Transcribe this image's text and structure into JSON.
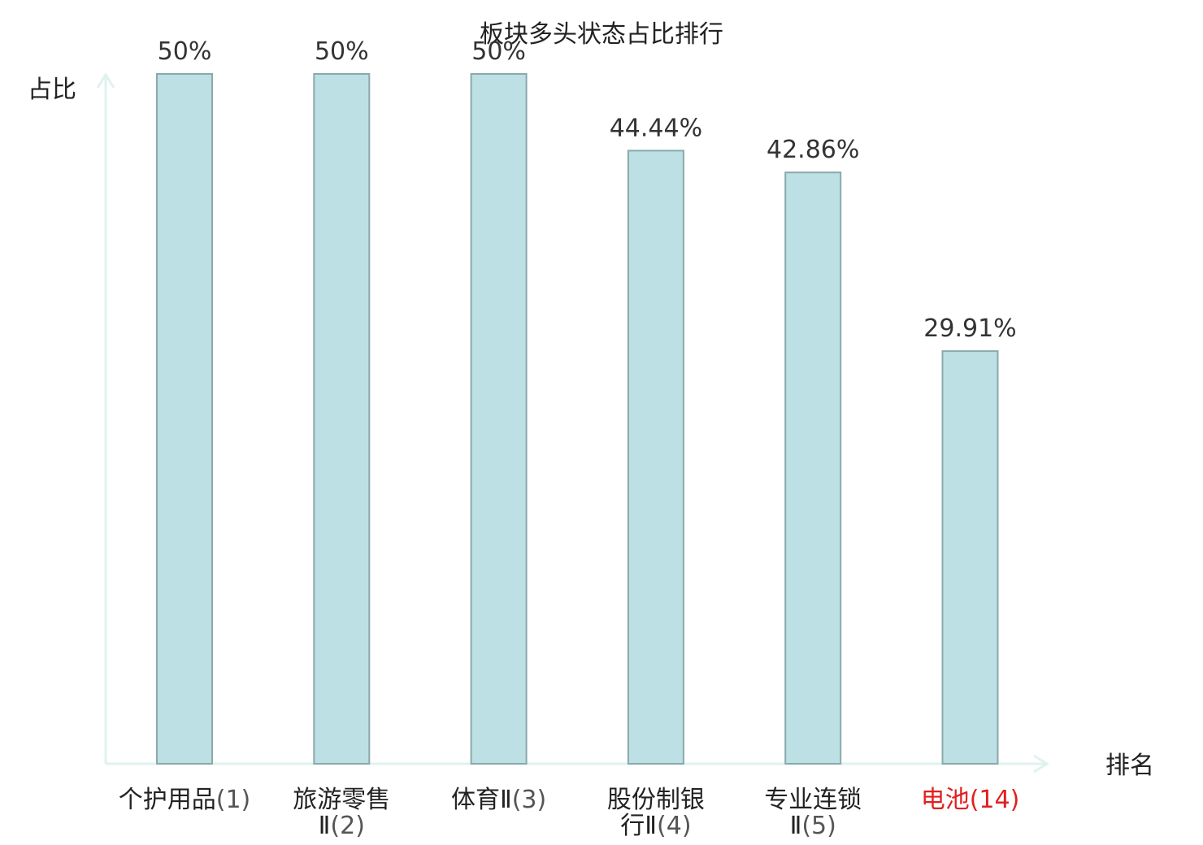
{
  "chart_data": {
    "type": "bar",
    "title": "板块多头状态占比排行",
    "ylabel": "占比",
    "xlabel": "排名",
    "ylim": [
      0,
      50
    ],
    "grid": false,
    "categories": [
      {
        "name": "个护用品",
        "rank": "(1)",
        "wrap": false,
        "highlight": false
      },
      {
        "name": "旅游零售Ⅱ",
        "rank": "(2)",
        "wrap": true,
        "highlight": false
      },
      {
        "name": "体育Ⅱ",
        "rank": "(3)",
        "wrap": false,
        "highlight": false
      },
      {
        "name": "股份制银行Ⅱ",
        "rank": "(4)",
        "wrap": true,
        "highlight": false
      },
      {
        "name": "专业连锁Ⅱ",
        "rank": "(5)",
        "wrap": true,
        "highlight": false
      },
      {
        "name": "电池",
        "rank": "(14)",
        "wrap": false,
        "highlight": true
      }
    ],
    "values": [
      50,
      50,
      50,
      44.44,
      42.86,
      29.91
    ],
    "value_labels": [
      "50%",
      "50%",
      "50%",
      "44.44%",
      "42.86%",
      "29.91%"
    ],
    "colors": {
      "bar_fill": "#bce0e3",
      "bar_stroke": "#8aa9ad",
      "axis": "#dff2f0",
      "highlight_label": "#e02020"
    }
  }
}
